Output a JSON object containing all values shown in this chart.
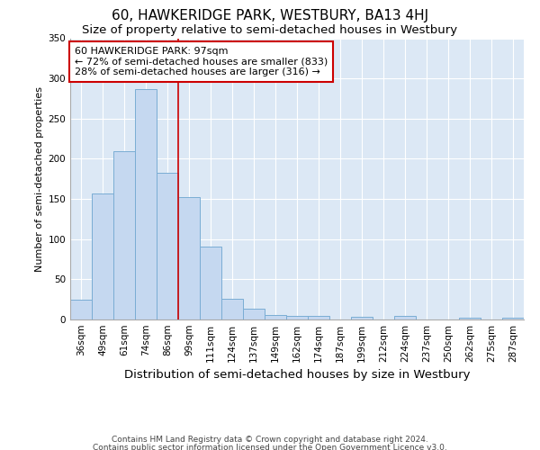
{
  "title": "60, HAWKERIDGE PARK, WESTBURY, BA13 4HJ",
  "subtitle": "Size of property relative to semi-detached houses in Westbury",
  "xlabel": "Distribution of semi-detached houses by size in Westbury",
  "ylabel": "Number of semi-detached properties",
  "annotation_line1": "60 HAWKERIDGE PARK: 97sqm",
  "annotation_line2": "← 72% of semi-detached houses are smaller (833)",
  "annotation_line3": "28% of semi-detached houses are larger (316) →",
  "footer1": "Contains HM Land Registry data © Crown copyright and database right 2024.",
  "footer2": "Contains public sector information licensed under the Open Government Licence v3.0.",
  "categories": [
    "36sqm",
    "49sqm",
    "61sqm",
    "74sqm",
    "86sqm",
    "99sqm",
    "111sqm",
    "124sqm",
    "137sqm",
    "149sqm",
    "162sqm",
    "174sqm",
    "187sqm",
    "199sqm",
    "212sqm",
    "224sqm",
    "237sqm",
    "250sqm",
    "262sqm",
    "275sqm",
    "287sqm"
  ],
  "values": [
    25,
    157,
    210,
    287,
    183,
    152,
    91,
    26,
    14,
    6,
    5,
    5,
    0,
    3,
    0,
    4,
    0,
    0,
    2,
    0,
    2
  ],
  "bar_color": "#c5d8f0",
  "bar_edge_color": "#7aadd4",
  "vline_color": "#cc0000",
  "vline_x": 4.5,
  "ylim": [
    0,
    350
  ],
  "yticks": [
    0,
    50,
    100,
    150,
    200,
    250,
    300,
    350
  ],
  "fig_bg_color": "#ffffff",
  "plot_bg_color": "#dce8f5",
  "grid_color": "#ffffff",
  "title_fontsize": 11,
  "subtitle_fontsize": 9.5,
  "xlabel_fontsize": 9.5,
  "ylabel_fontsize": 8,
  "tick_fontsize": 7.5,
  "annotation_fontsize": 8,
  "footer_fontsize": 6.5,
  "annotation_box_color": "#ffffff",
  "annotation_box_edge": "#cc0000"
}
